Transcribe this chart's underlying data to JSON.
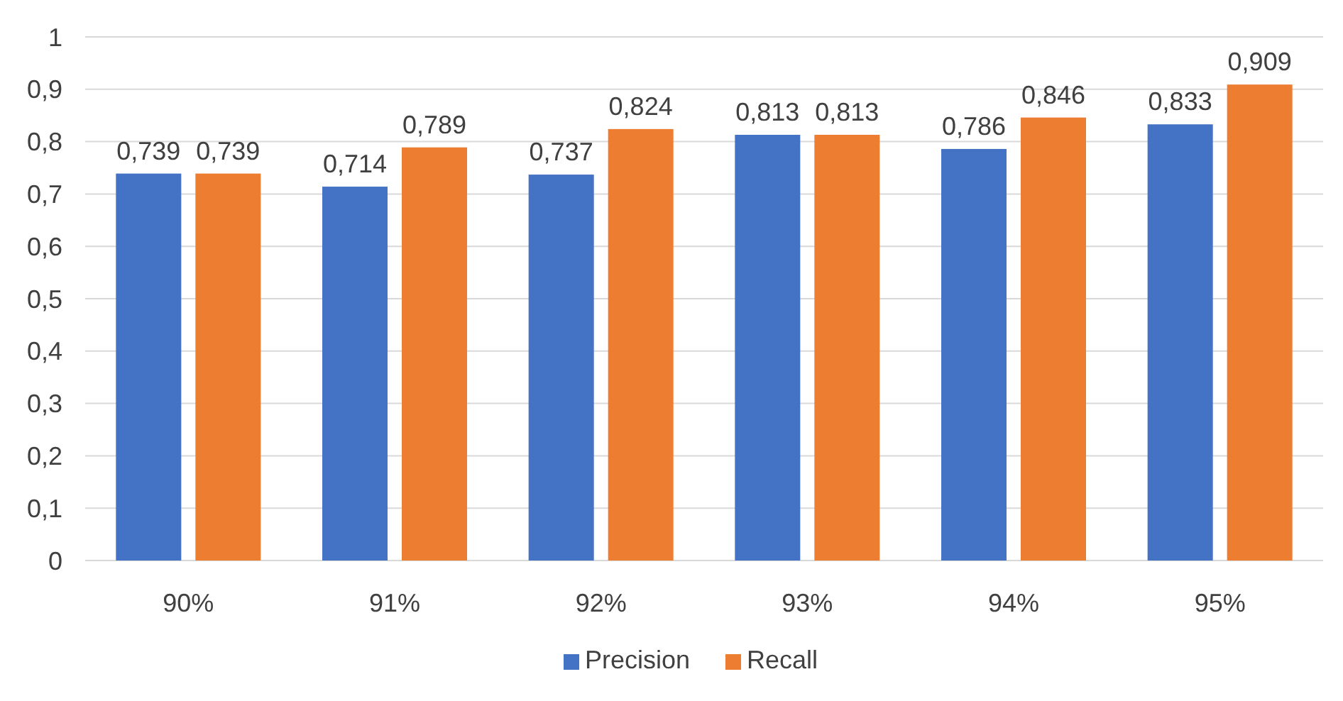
{
  "chart_data": {
    "type": "bar",
    "categories": [
      "90%",
      "91%",
      "92%",
      "93%",
      "94%",
      "95%"
    ],
    "series": [
      {
        "name": "Precision",
        "color": "#4472c4",
        "values": [
          0.739,
          0.714,
          0.737,
          0.813,
          0.786,
          0.833
        ],
        "value_labels": [
          "0,739",
          "0,714",
          "0,737",
          "0,813",
          "0,786",
          "0,833"
        ]
      },
      {
        "name": "Recall",
        "color": "#ed7d31",
        "values": [
          0.739,
          0.789,
          0.824,
          0.813,
          0.846,
          0.909
        ],
        "value_labels": [
          "0,739",
          "0,789",
          "0,824",
          "0,813",
          "0,846",
          "0,909"
        ]
      }
    ],
    "ylim": [
      0,
      1
    ],
    "yticks": [
      0,
      {
        "value": 0.1,
        "label": "0,1"
      },
      {
        "value": 0.2,
        "label": "0,2"
      },
      {
        "value": 0.3,
        "label": "0,3"
      },
      {
        "value": 0.4,
        "label": "0,4"
      },
      {
        "value": 0.5,
        "label": "0,5"
      },
      {
        "value": 0.6,
        "label": "0,6"
      },
      {
        "value": 0.7,
        "label": "0,7"
      },
      {
        "value": 0.8,
        "label": "0,8"
      },
      {
        "value": 0.9,
        "label": "0,9"
      },
      1
    ],
    "grid": "y",
    "legend": "bottom"
  }
}
